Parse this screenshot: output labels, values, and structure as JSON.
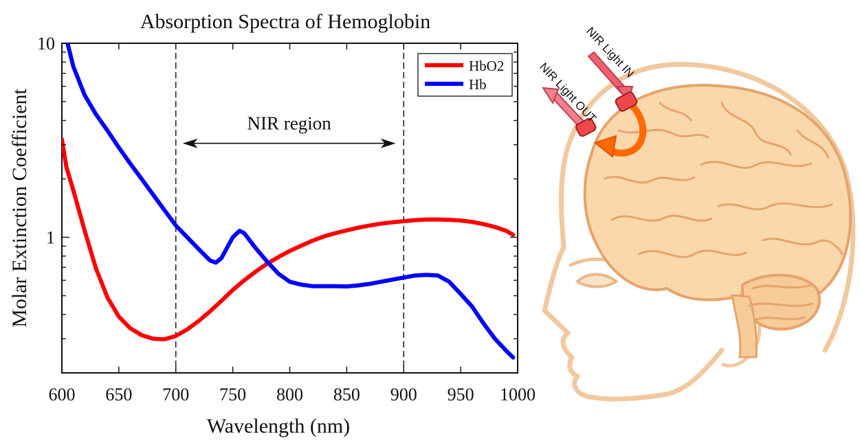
{
  "chart_data": {
    "type": "line",
    "title": "Absorption Spectra of Hemoglobin",
    "xlabel": "Wavelength (nm)",
    "ylabel": "Molar Extinction Coefficient",
    "xlim": [
      600,
      1000
    ],
    "ylim": [
      0.2,
      10
    ],
    "y_scale": "log",
    "x_ticks": [
      600,
      650,
      700,
      750,
      800,
      850,
      900,
      950,
      1000
    ],
    "x_tick_labels": [
      "600",
      "650",
      "700",
      "750",
      "800",
      "850",
      "900",
      "950",
      "1000"
    ],
    "y_ticks": [
      1,
      10
    ],
    "y_tick_labels": [
      "1",
      "10"
    ],
    "grid": false,
    "legend_position": "top-right",
    "colors": {
      "HbO2": "#ff0000",
      "Hb": "#0000ff"
    },
    "series": [
      {
        "name": "HbO2",
        "x": [
          600,
          604,
          610,
          620,
          630,
          640,
          650,
          660,
          670,
          680,
          690,
          700,
          710,
          720,
          730,
          740,
          750,
          760,
          770,
          780,
          790,
          800,
          810,
          820,
          830,
          840,
          850,
          860,
          870,
          880,
          890,
          900,
          910,
          920,
          930,
          940,
          950,
          960,
          970,
          980,
          990,
          996
        ],
        "y": [
          3.2,
          2.3,
          1.75,
          1.08,
          0.69,
          0.49,
          0.39,
          0.34,
          0.313,
          0.3,
          0.298,
          0.31,
          0.335,
          0.37,
          0.415,
          0.47,
          0.535,
          0.6,
          0.665,
          0.73,
          0.79,
          0.85,
          0.905,
          0.96,
          1.01,
          1.05,
          1.085,
          1.12,
          1.15,
          1.175,
          1.195,
          1.21,
          1.225,
          1.235,
          1.235,
          1.23,
          1.22,
          1.2,
          1.17,
          1.13,
          1.08,
          1.03
        ]
      },
      {
        "name": "Hb",
        "x": [
          605,
          610,
          620,
          630,
          640,
          650,
          660,
          670,
          680,
          690,
          700,
          710,
          720,
          730,
          735,
          740,
          750,
          756,
          760,
          770,
          780,
          790,
          800,
          810,
          820,
          830,
          840,
          850,
          860,
          870,
          880,
          890,
          900,
          910,
          920,
          930,
          940,
          950,
          960,
          970,
          980,
          990,
          996
        ],
        "y": [
          10,
          7.6,
          5.4,
          4.3,
          3.55,
          2.9,
          2.4,
          2.0,
          1.66,
          1.38,
          1.15,
          1.0,
          0.87,
          0.76,
          0.74,
          0.78,
          1.0,
          1.08,
          1.05,
          0.88,
          0.75,
          0.65,
          0.59,
          0.57,
          0.56,
          0.56,
          0.56,
          0.558,
          0.565,
          0.575,
          0.59,
          0.605,
          0.62,
          0.635,
          0.64,
          0.635,
          0.59,
          0.51,
          0.44,
          0.36,
          0.3,
          0.26,
          0.24
        ]
      }
    ],
    "reference_lines": [
      700,
      900
    ],
    "annotation": {
      "text": "NIR region",
      "from": 706,
      "to": 893,
      "y": 3.05
    }
  },
  "illustration": {
    "arrow_in_label": "NIR Light IN",
    "arrow_out_label": "NIR Light OUT"
  }
}
